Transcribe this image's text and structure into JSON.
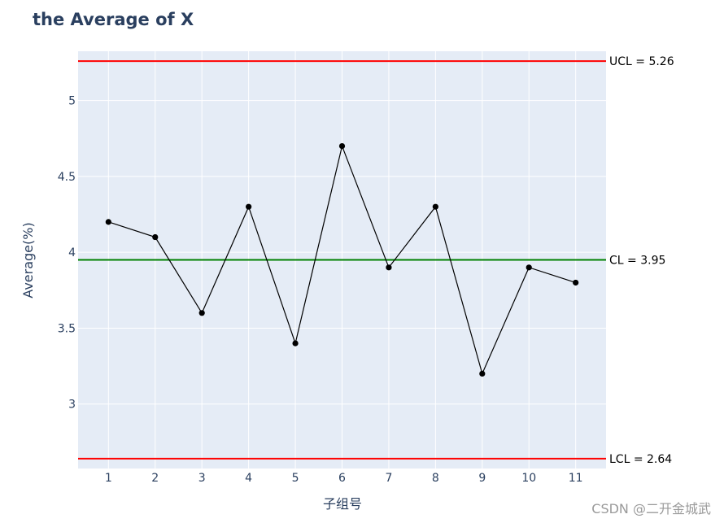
{
  "chart_data": {
    "type": "line",
    "title": "the Average of X",
    "xlabel": "子组号",
    "ylabel": "Average(%)",
    "x": [
      1,
      2,
      3,
      4,
      5,
      6,
      7,
      8,
      9,
      10,
      11
    ],
    "series": [
      {
        "values": [
          4.2,
          4.1,
          3.6,
          4.3,
          3.4,
          4.7,
          3.9,
          4.3,
          3.2,
          3.9,
          3.8
        ],
        "color": "#000000"
      }
    ],
    "control_lines": [
      {
        "label": "UCL = 5.26",
        "value": 5.26,
        "color": "#ff0000"
      },
      {
        "label": "CL = 3.95",
        "value": 3.95,
        "color": "#008000"
      },
      {
        "label": "LCL = 2.64",
        "value": 2.64,
        "color": "#ff0000"
      }
    ],
    "xlim": [
      0.35,
      11.65
    ],
    "ylim": [
      2.575,
      5.325
    ],
    "xticks": [
      "1",
      "2",
      "3",
      "4",
      "5",
      "6",
      "7",
      "8",
      "9",
      "10",
      "11"
    ],
    "yticks": [
      "3",
      "3.5",
      "4",
      "4.5",
      "5"
    ],
    "ytick_values": [
      3,
      3.5,
      4,
      4.5,
      5
    ],
    "grid": true,
    "legend": "none",
    "plot_background": "#e5ecf6",
    "text_color": "#2a3f5f"
  },
  "watermark": "CSDN @二开金城武"
}
